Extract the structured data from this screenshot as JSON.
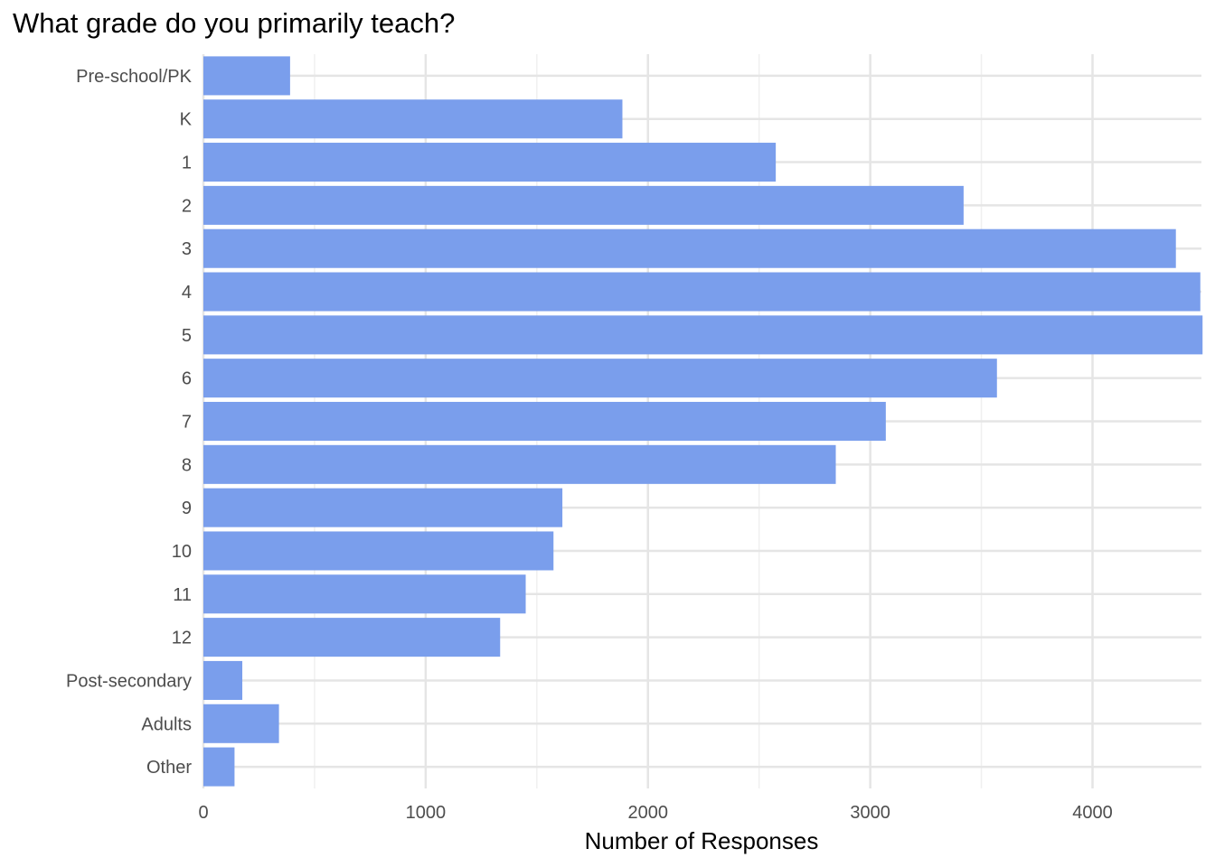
{
  "chart_data": {
    "type": "bar",
    "orientation": "horizontal",
    "title": "What grade do you primarily teach?",
    "xlabel": "Number of Responses",
    "ylabel": "",
    "categories": [
      "Pre-school/PK",
      "K",
      "1",
      "2",
      "3",
      "4",
      "5",
      "6",
      "7",
      "8",
      "9",
      "10",
      "11",
      "12",
      "Post-secondary",
      "Adults",
      "Other"
    ],
    "values": [
      390,
      1885,
      2575,
      3420,
      4375,
      4485,
      4495,
      3570,
      3070,
      2845,
      1615,
      1575,
      1450,
      1335,
      175,
      340,
      140
    ],
    "xticks": [
      "0",
      "1000",
      "2000",
      "3000",
      "4000"
    ],
    "xlim": [
      0,
      4490
    ],
    "grid": true,
    "colors": {
      "bar": "#7a9eec",
      "grid_major": "#e5e5e5",
      "grid_minor": "#f0f0f0",
      "tick_text": "#4d4d4d"
    }
  }
}
